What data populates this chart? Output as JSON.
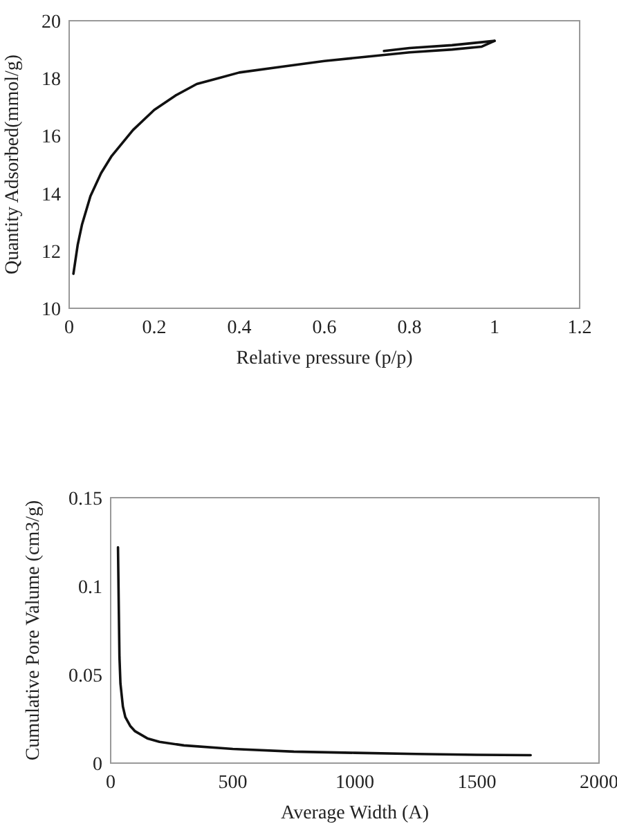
{
  "chart_data": [
    {
      "type": "line",
      "xlabel": "Relative pressure (p/p)",
      "ylabel": "Quantity Adsorbed(mmol/g)",
      "xlim": [
        0,
        1.2
      ],
      "xticks": [
        0,
        0.2,
        0.4,
        0.6,
        0.8,
        1,
        1.2
      ],
      "ylim": [
        10,
        20
      ],
      "yticks": [
        10,
        12,
        14,
        16,
        18,
        20
      ],
      "grid": false,
      "marker": "none",
      "line_style": "solid",
      "series": [
        {
          "color": "#111111",
          "x": [
            0.01,
            0.02,
            0.03,
            0.05,
            0.075,
            0.1,
            0.15,
            0.2,
            0.25,
            0.3,
            0.35,
            0.4,
            0.5,
            0.6,
            0.7,
            0.8,
            0.9,
            0.97,
            1.0
          ],
          "values": [
            11.2,
            12.2,
            12.9,
            13.9,
            14.7,
            15.3,
            16.2,
            16.9,
            17.4,
            17.8,
            18.0,
            18.2,
            18.4,
            18.6,
            18.75,
            18.9,
            19.0,
            19.1,
            19.3
          ]
        },
        {
          "color": "#111111",
          "x": [
            1.0,
            0.9,
            0.8,
            0.74
          ],
          "values": [
            19.3,
            19.15,
            19.05,
            18.95
          ]
        }
      ]
    },
    {
      "type": "line",
      "xlabel": "Average Width (A)",
      "ylabel": "Cumulative Pore Valume (cm3/g)",
      "xlim": [
        0,
        2000
      ],
      "xticks": [
        0,
        500,
        1000,
        1500,
        2000
      ],
      "ylim": [
        0,
        0.15
      ],
      "yticks": [
        0,
        0.05,
        0.1,
        0.15
      ],
      "grid": false,
      "marker": "none",
      "line_style": "solid",
      "series": [
        {
          "color": "#111111",
          "x": [
            30,
            33,
            36,
            40,
            50,
            60,
            80,
            100,
            150,
            200,
            300,
            500,
            750,
            1000,
            1250,
            1500,
            1720
          ],
          "values": [
            0.122,
            0.09,
            0.06,
            0.045,
            0.032,
            0.026,
            0.021,
            0.018,
            0.014,
            0.012,
            0.01,
            0.008,
            0.0065,
            0.0058,
            0.0052,
            0.0047,
            0.0045
          ]
        }
      ]
    }
  ]
}
